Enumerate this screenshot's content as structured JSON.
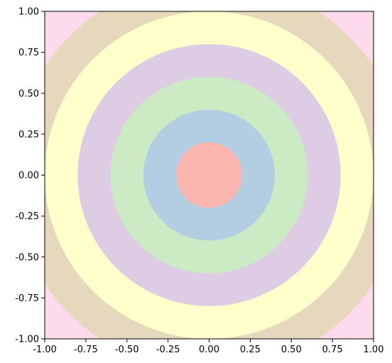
{
  "chart_data": {
    "type": "heatmap",
    "title": "",
    "xlabel": "",
    "ylabel": "",
    "xlim": [
      -1.0,
      1.0
    ],
    "ylim": [
      -1.0,
      1.0
    ],
    "grid": false,
    "legend": "none",
    "x_ticks": [
      "-1.00",
      "-0.75",
      "-0.50",
      "-0.25",
      "0.00",
      "0.25",
      "0.50",
      "0.75",
      "1.00"
    ],
    "y_ticks": [
      "1.00",
      "0.75",
      "0.50",
      "0.25",
      "0.00",
      "-0.25",
      "-0.50",
      "-0.75",
      "-1.00"
    ],
    "x_tick_values": [
      -1.0,
      -0.75,
      -0.5,
      -0.25,
      0.0,
      0.25,
      0.5,
      0.75,
      1.0
    ],
    "y_tick_values": [
      1.0,
      0.75,
      0.5,
      0.25,
      0.0,
      -0.25,
      -0.5,
      -0.75,
      -1.0
    ],
    "center": [
      0.0,
      0.0
    ],
    "background_color": "#fddaec",
    "bands": [
      {
        "r_min": 1.0,
        "r_max": 1.2,
        "color": "#e5d8bd"
      },
      {
        "r_min": 0.8,
        "r_max": 1.0,
        "color": "#ffffcc"
      },
      {
        "r_min": 0.6,
        "r_max": 0.8,
        "color": "#decbe4"
      },
      {
        "r_min": 0.4,
        "r_max": 0.6,
        "color": "#ccebc5"
      },
      {
        "r_min": 0.2,
        "r_max": 0.4,
        "color": "#b3cde3"
      },
      {
        "r_min": 0.0,
        "r_max": 0.2,
        "color": "#fbb4ae"
      }
    ]
  }
}
